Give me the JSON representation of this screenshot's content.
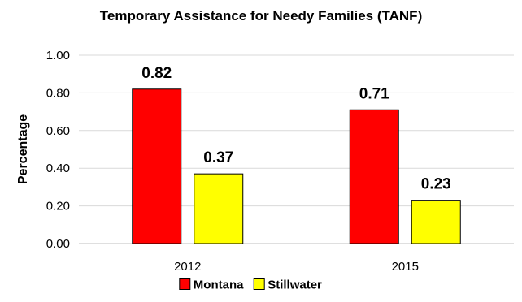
{
  "chart_data": {
    "type": "bar",
    "title": "Temporary Assistance for Needy Families (TANF)",
    "xlabel": "",
    "ylabel": "Percentage",
    "categories": [
      "2012",
      "2015"
    ],
    "series": [
      {
        "name": "Montana",
        "values": [
          0.82,
          0.71
        ],
        "color": "#ff0000",
        "labels": [
          "0.82",
          "0.71"
        ]
      },
      {
        "name": "Stillwater",
        "values": [
          0.37,
          0.23
        ],
        "color": "#ffff00",
        "labels": [
          "0.37",
          "0.23"
        ]
      }
    ],
    "ylim": [
      0,
      1.0
    ],
    "yticks": [
      "0.00",
      "0.20",
      "0.40",
      "0.60",
      "0.80",
      "1.00"
    ],
    "grid": true,
    "legend_position": "bottom"
  }
}
